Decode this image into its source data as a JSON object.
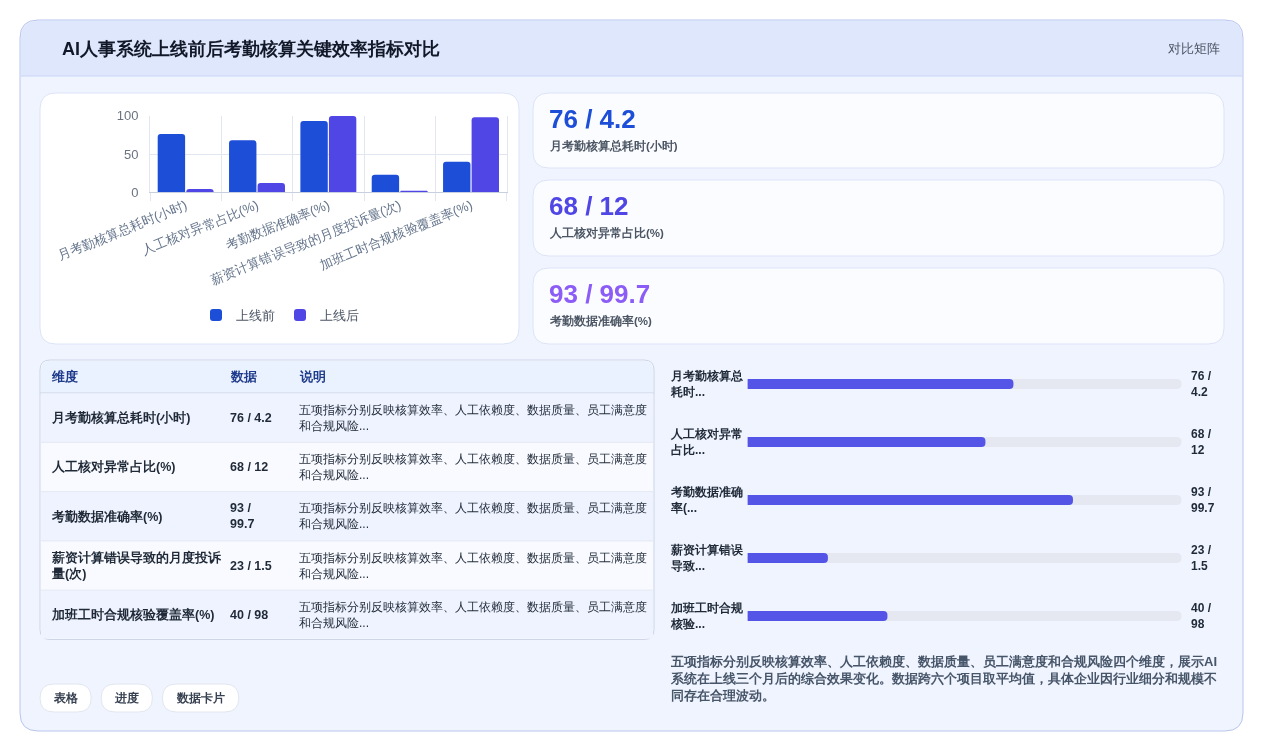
{
  "chart_data": [
    {
      "type": "bar",
      "title": "AI人事系统上线前后考勤核算关键效率指标对比",
      "categories": [
        "月考勤核算总耗时(小时)",
        "人工核对异常占比(%)",
        "考勤数据准确率(%)",
        "薪资计算错误导致的月度投诉量(次)",
        "加班工时合规核验覆盖率(%)"
      ],
      "series": [
        {
          "name": "上线前",
          "color": "#1d4ed8",
          "values": [
            76,
            68,
            93,
            23,
            40
          ]
        },
        {
          "name": "上线后",
          "color": "#4f46e5",
          "values": [
            4.2,
            12,
            99.7,
            1.5,
            98
          ]
        }
      ],
      "ylim": [
        0,
        100
      ],
      "yticks": [
        0,
        50,
        100
      ],
      "grid": true,
      "legend": "bottom"
    },
    {
      "type": "other",
      "subtitle": "对比矩阵",
      "categories": [
        "月考勤核算总耗时(小时)",
        "人工核对异常占比(%)",
        "考勤数据准确率(%)"
      ],
      "value_labels": [
        "76 / 4.2",
        "68 / 12",
        "93 / 99.7"
      ]
    },
    {
      "type": "other",
      "categories": [
        "维度",
        "数据",
        "说明"
      ],
      "cell_labels": [
        [
          "月考勤核算总耗时(小时)",
          "76 / 4.2",
          "五项指标分别反映核算效率、人工依赖度、数据质量、员工满意度和合规风险..."
        ],
        [
          "人工核对异常占比(%)",
          "68 / 12",
          "五项指标分别反映核算效率、人工依赖度、数据质量、员工满意度和合规风险..."
        ],
        [
          "考勤数据准确率(%)",
          "93 / 99.7",
          "五项指标分别反映核算效率、人工依赖度、数据质量、员工满意度和合规风险..."
        ],
        [
          "薪资计算错误导致的月度投诉量(次)",
          "23 / 1.5",
          "五项指标分别反映核算效率、人工依赖度、数据质量、员工满意度和合规风险..."
        ],
        [
          "加班工时合规核验覆盖率(%)",
          "40 / 98",
          "五项指标分别反映核算效率、人工依赖度、数据质量、员工满意度和合规风险..."
        ]
      ],
      "annotations": [
        "表格",
        "进度",
        "数据卡片"
      ]
    },
    {
      "type": "bar",
      "orientation": "horizontal",
      "categories": [
        "月考勤核算总耗时...",
        "人工核对异常占比...",
        "考勤数据准确率(...",
        "薪资计算错误导致...",
        "加班工时合规核验..."
      ],
      "values": [
        76,
        68,
        93,
        23,
        40
      ],
      "value_labels": [
        "76 / 4.2",
        "68 / 12",
        "93 / 99.7",
        "23 / 1.5",
        "40 / 98"
      ],
      "xlim": [
        0,
        124
      ],
      "color": "#5455e7",
      "tick_labels": "y",
      "annotations": [
        "五项指标分别反映核算效率、人工依赖度、数据质量、员工满意度和合规风险四个维度，展示AI系统在上线三个月后的综合效果变化。数据跨六个项目取平均值，具体企业因行业细分和规模不同存在合理波动。"
      ]
    }
  ]
}
